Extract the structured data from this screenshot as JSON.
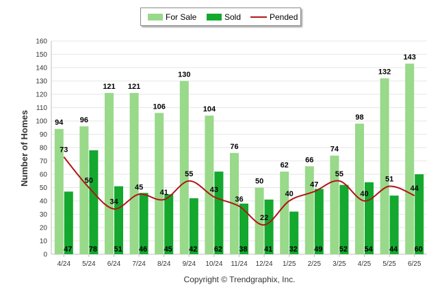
{
  "chart_data": {
    "type": "bar",
    "categories": [
      "4/24",
      "5/24",
      "6/24",
      "7/24",
      "8/24",
      "9/24",
      "10/24",
      "11/24",
      "12/24",
      "1/25",
      "2/25",
      "3/25",
      "4/25",
      "5/25",
      "6/25"
    ],
    "series": [
      {
        "name": "For Sale",
        "type": "bar",
        "color": "#99d98a",
        "values": [
          94,
          96,
          121,
          121,
          106,
          130,
          104,
          76,
          50,
          62,
          66,
          74,
          98,
          132,
          143
        ]
      },
      {
        "name": "Sold",
        "type": "bar",
        "color": "#14a82f",
        "values": [
          47,
          78,
          51,
          46,
          45,
          42,
          62,
          38,
          41,
          32,
          49,
          52,
          54,
          44,
          60
        ]
      },
      {
        "name": "Pended",
        "type": "line",
        "color": "#b11416",
        "values": [
          73,
          50,
          34,
          45,
          41,
          55,
          43,
          36,
          22,
          40,
          47,
          55,
          40,
          51,
          44
        ]
      }
    ],
    "ylabel": "Number of Homes",
    "xlabel": "",
    "ylim": [
      0,
      160
    ],
    "yticks": [
      0,
      10,
      20,
      30,
      40,
      50,
      60,
      70,
      80,
      90,
      100,
      110,
      120,
      130,
      140,
      150,
      160
    ],
    "grid": true,
    "legend": "top"
  },
  "legend": {
    "for_sale": "For Sale",
    "sold": "Sold",
    "pended": "Pended"
  },
  "copyright": "Copyright © Trendgraphix, Inc."
}
